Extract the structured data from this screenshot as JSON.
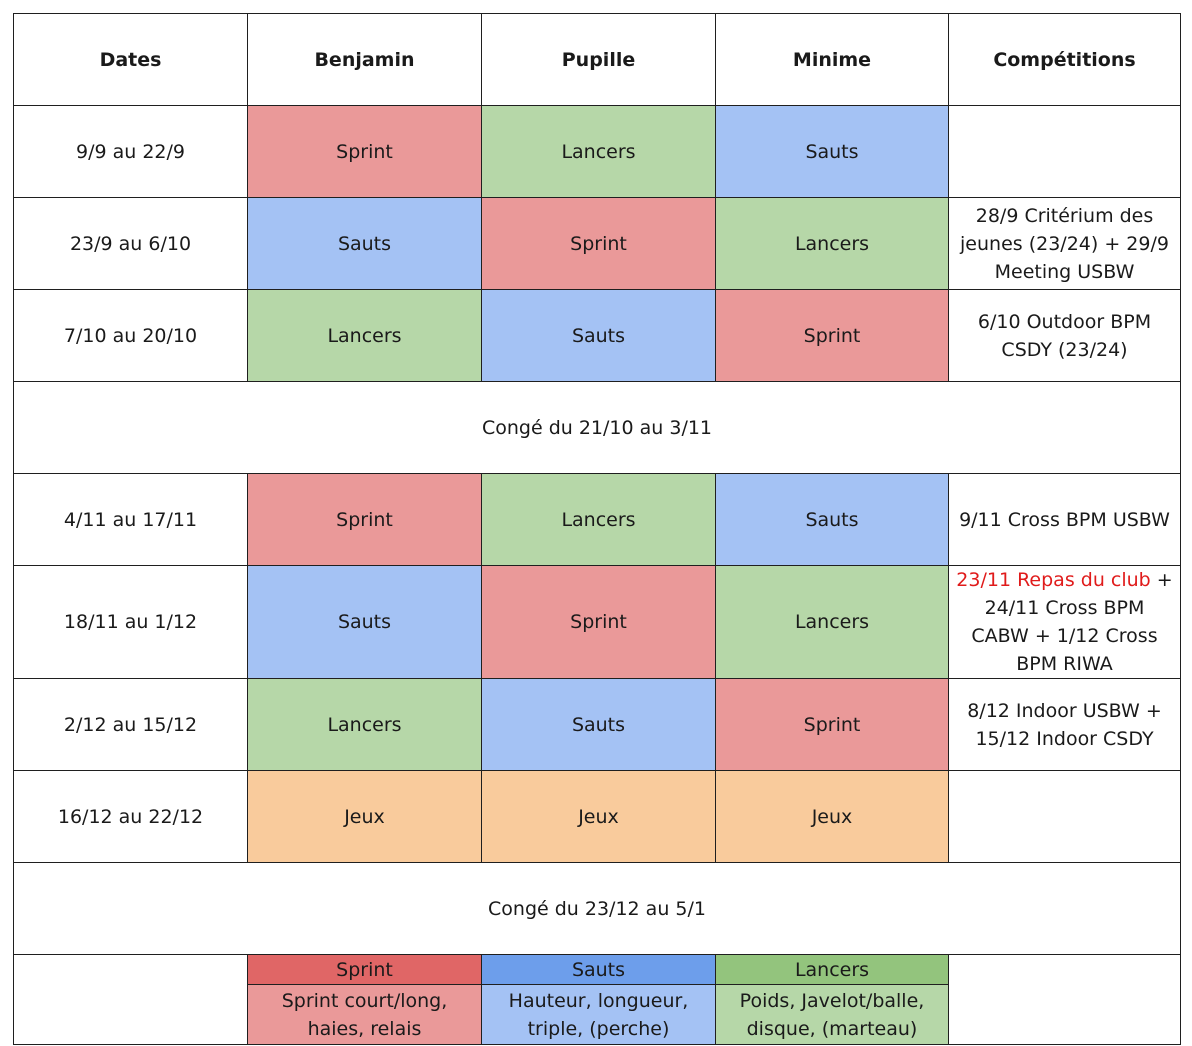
{
  "headers": [
    "Dates",
    "Benjamin",
    "Pupille",
    "Minime",
    "Compétitions"
  ],
  "colors": {
    "sprint": "#ea9999",
    "lancers": "#b6d7a8",
    "sauts": "#a4c2f4",
    "jeux": "#f9cb9c",
    "sprint_header": "#e06666",
    "sauts_header": "#6d9eeb",
    "lancers_header": "#93c47d",
    "highlight_text": "#e01b1b"
  },
  "rows": [
    {
      "date": "9/9 au 22/9",
      "benjamin": "Sprint",
      "pupille": "Lancers",
      "minime": "Sauts",
      "competitions": ""
    },
    {
      "date": "23/9 au 6/10",
      "benjamin": "Sauts",
      "pupille": "Sprint",
      "minime": "Lancers",
      "competitions": "28/9 Critérium des jeunes (23/24) + 29/9 Meeting USBW"
    },
    {
      "date": "7/10 au 20/10",
      "benjamin": "Lancers",
      "pupille": "Sauts",
      "minime": "Sprint",
      "competitions": "6/10 Outdoor BPM CSDY (23/24)"
    },
    {
      "separator": "Congé du 21/10 au 3/11"
    },
    {
      "date": "4/11 au 17/11",
      "benjamin": "Sprint",
      "pupille": "Lancers",
      "minime": "Sauts",
      "competitions": "9/11 Cross BPM USBW"
    },
    {
      "date": "18/11 au 1/12",
      "benjamin": "Sauts",
      "pupille": "Sprint",
      "minime": "Lancers",
      "competitions_highlight": "23/11 Repas du club",
      "competitions": " + 24/11 Cross BPM CABW + 1/12 Cross BPM RIWA"
    },
    {
      "date": "2/12 au 15/12",
      "benjamin": "Lancers",
      "pupille": "Sauts",
      "minime": "Sprint",
      "competitions": "8/12 Indoor USBW + 15/12 Indoor CSDY"
    },
    {
      "date": "16/12 au 22/12",
      "benjamin": "Jeux",
      "pupille": "Jeux",
      "minime": "Jeux",
      "competitions": ""
    },
    {
      "separator": "Congé du 23/12 au 5/1"
    }
  ],
  "legend": {
    "sprint": {
      "title": "Sprint",
      "desc": "Sprint court/long, haies, relais"
    },
    "sauts": {
      "title": "Sauts",
      "desc": "Hauteur, longueur, triple, (perche)"
    },
    "lancers": {
      "title": "Lancers",
      "desc": "Poids, Javelot/balle, disque, (marteau)"
    }
  }
}
